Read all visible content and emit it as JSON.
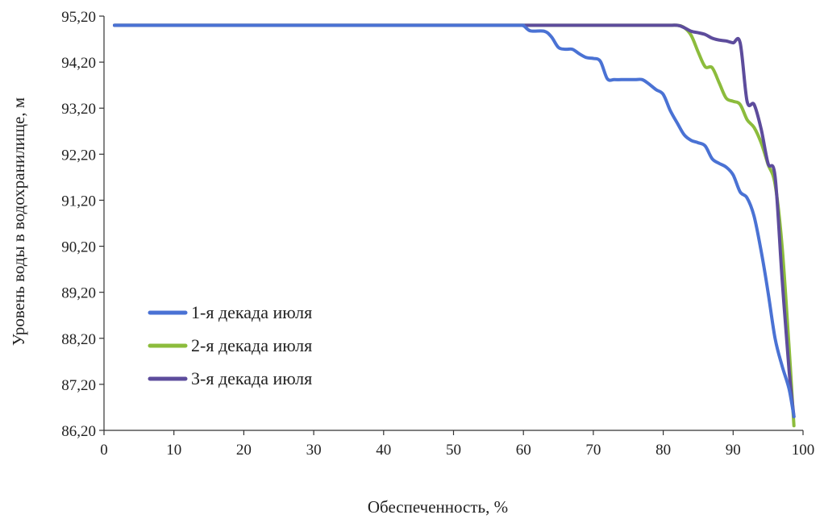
{
  "chart_data": {
    "type": "line",
    "title": "",
    "xlabel": "Обеспеченность, %",
    "ylabel": "Уровень воды в водохранилище, м",
    "xlim": [
      0,
      100
    ],
    "ylim": [
      86.2,
      95.2
    ],
    "xticks": [
      0,
      10,
      20,
      30,
      40,
      50,
      60,
      70,
      80,
      90,
      100
    ],
    "xtick_labels": [
      "0",
      "10",
      "20",
      "30",
      "40",
      "50",
      "60",
      "70",
      "80",
      "90",
      "100"
    ],
    "yticks": [
      86.2,
      87.2,
      88.2,
      89.2,
      90.2,
      91.2,
      92.2,
      93.2,
      94.2,
      95.2
    ],
    "ytick_labels": [
      "86,20",
      "87,20",
      "88,20",
      "89,20",
      "90,20",
      "91,20",
      "92,20",
      "93,20",
      "94,20",
      "95,20"
    ],
    "grid": false,
    "legend_position": "lower-left",
    "series": [
      {
        "name": "1-я декада июля",
        "color": "#4a72d4",
        "x": [
          1.5,
          10,
          30,
          50,
          59,
          60,
          61,
          63,
          64,
          65,
          66,
          67,
          68,
          69,
          70,
          71,
          72,
          73,
          74,
          75,
          76,
          77,
          78,
          79,
          80,
          81,
          82,
          83,
          84,
          85,
          86,
          87,
          88,
          89,
          90,
          91,
          92,
          93,
          94,
          95,
          96,
          97,
          98,
          98.7
        ],
        "values": [
          95.0,
          95.0,
          95.0,
          95.0,
          95.0,
          94.99,
          94.88,
          94.87,
          94.75,
          94.52,
          94.48,
          94.48,
          94.38,
          94.3,
          94.28,
          94.22,
          93.84,
          93.82,
          93.82,
          93.82,
          93.82,
          93.82,
          93.72,
          93.6,
          93.5,
          93.15,
          92.88,
          92.62,
          92.5,
          92.45,
          92.38,
          92.1,
          92.0,
          91.92,
          91.75,
          91.38,
          91.25,
          90.85,
          90.1,
          89.2,
          88.2,
          87.6,
          87.1,
          86.5
        ]
      },
      {
        "name": "2-я декада июля",
        "color": "#8cbc3c",
        "x": [
          1.5,
          10,
          30,
          50,
          70,
          80,
          82,
          83,
          84,
          85,
          86,
          87,
          88,
          89,
          90,
          91,
          92,
          93,
          94,
          95,
          96,
          97,
          98,
          98.7
        ],
        "values": [
          95.0,
          95.0,
          95.0,
          95.0,
          95.0,
          95.0,
          95.0,
          94.95,
          94.78,
          94.42,
          94.1,
          94.08,
          93.75,
          93.42,
          93.35,
          93.28,
          92.95,
          92.78,
          92.45,
          91.98,
          91.55,
          90.2,
          88.0,
          86.3
        ]
      },
      {
        "name": "3-я декада июля",
        "color": "#5d4c9c",
        "x": [
          1.5,
          10,
          30,
          50,
          70,
          80,
          82,
          83,
          84,
          85,
          86,
          87,
          88,
          89,
          90,
          91,
          92,
          93,
          94,
          95,
          96,
          97,
          98,
          98.7
        ],
        "values": [
          95.0,
          95.0,
          95.0,
          95.0,
          95.0,
          95.0,
          95.0,
          94.95,
          94.87,
          94.84,
          94.8,
          94.72,
          94.68,
          94.66,
          94.62,
          94.62,
          93.35,
          93.28,
          92.75,
          92.0,
          91.72,
          89.5,
          87.5,
          86.5
        ]
      }
    ]
  }
}
